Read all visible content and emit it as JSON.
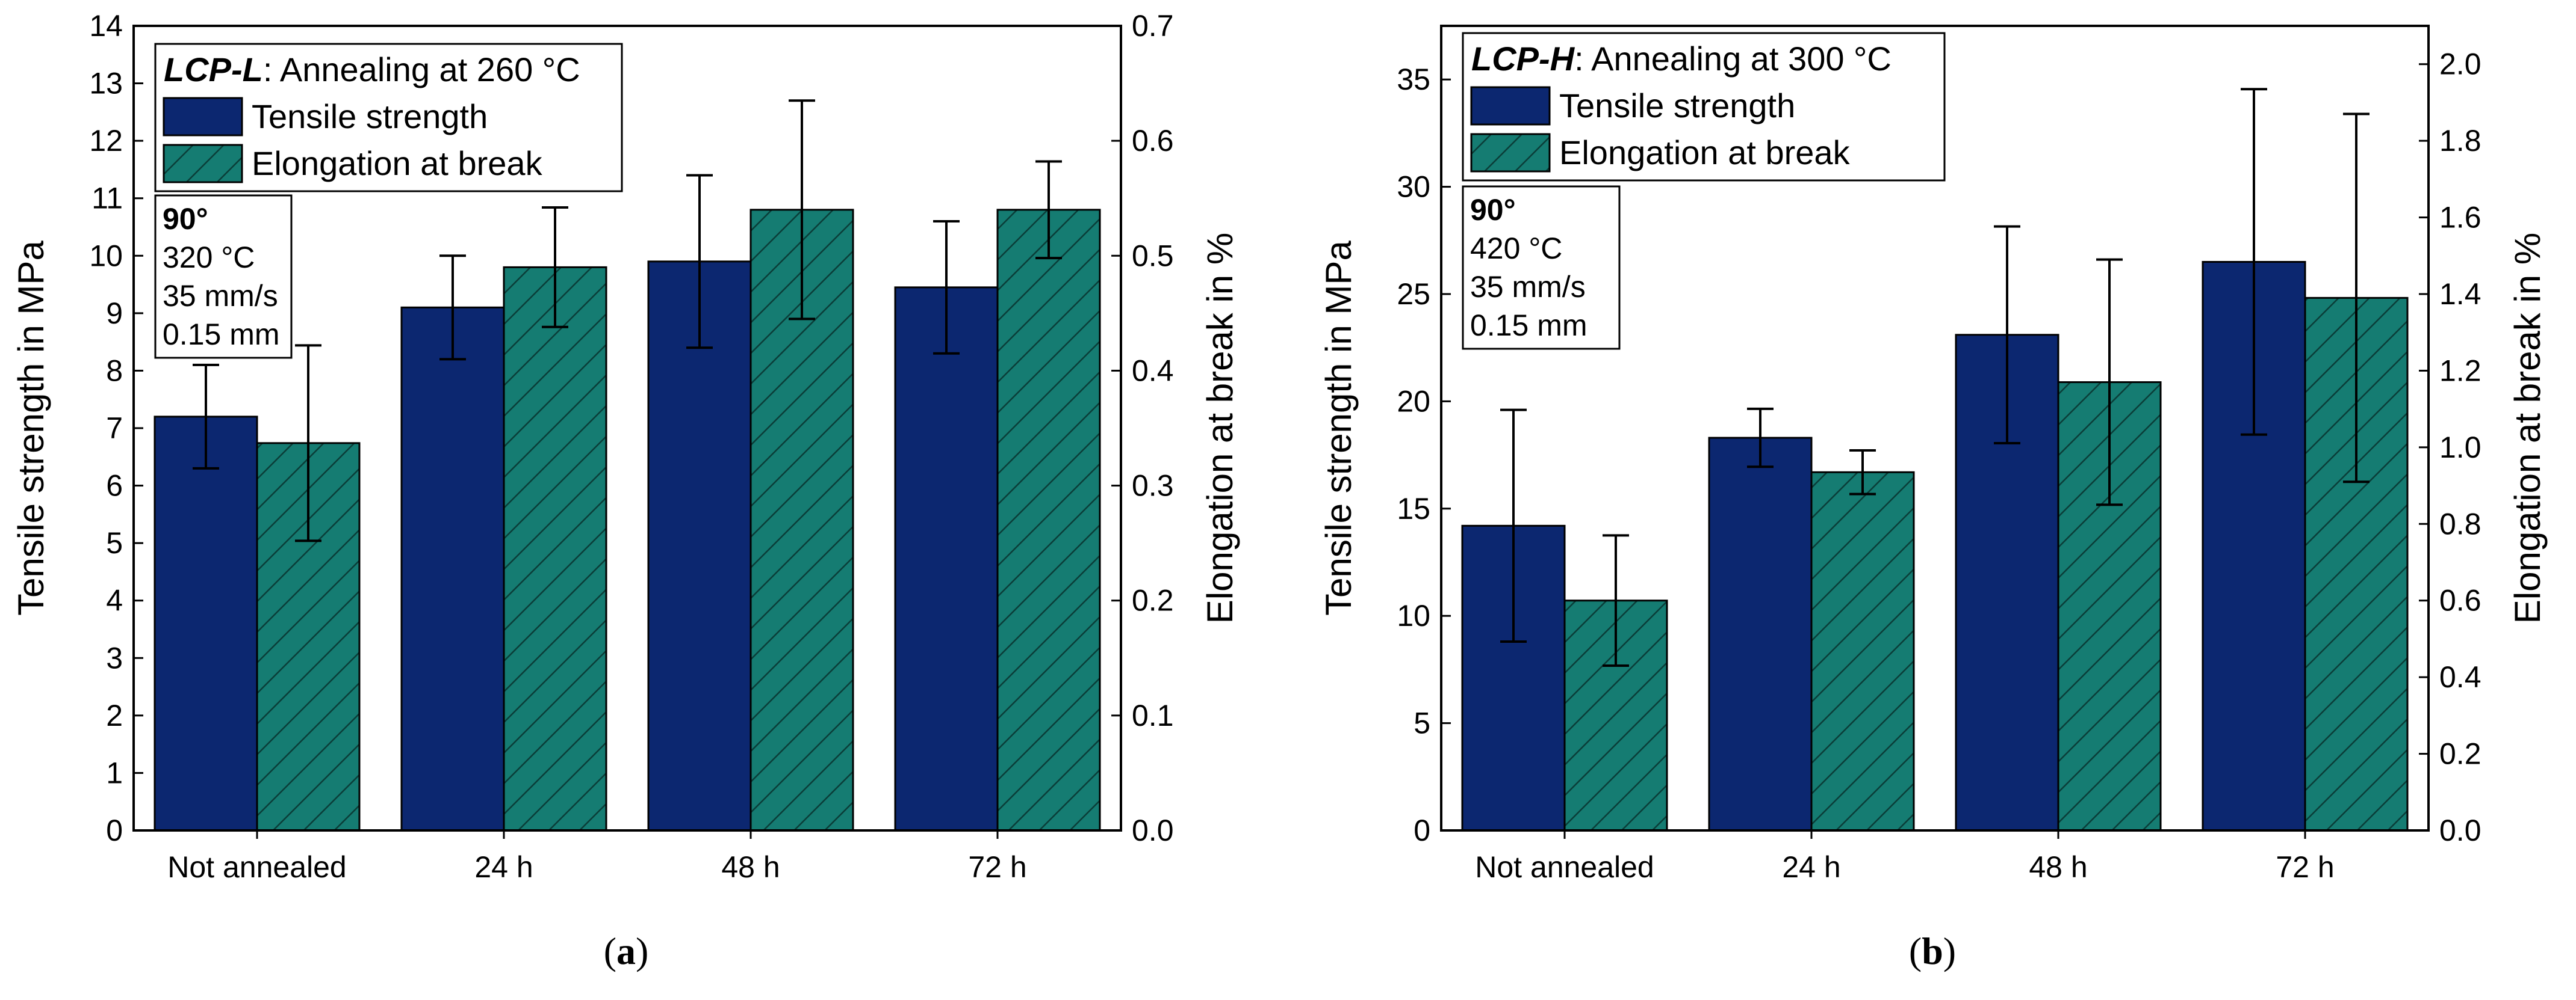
{
  "colors": {
    "tensile": "#0c2770",
    "elongation": "#157c72",
    "hatch": "#0a3d38"
  },
  "chart_data": [
    {
      "id": "a",
      "type": "bar",
      "caption": {
        "label": "a"
      },
      "categories": [
        "Not annealed",
        "24 h",
        "48 h",
        "72 h"
      ],
      "ylabel": "Tensile strength in MPa",
      "ylabel_right": "Elongation at break in %",
      "ylim": [
        0,
        14
      ],
      "ylim_right": [
        0,
        0.7
      ],
      "yticks": [
        "0",
        "1",
        "2",
        "3",
        "4",
        "5",
        "6",
        "7",
        "8",
        "9",
        "10",
        "11",
        "12",
        "13",
        "14"
      ],
      "yticks_right": [
        "0.0",
        "0.1",
        "0.2",
        "0.3",
        "0.4",
        "0.5",
        "0.6",
        "0.7"
      ],
      "legend": {
        "title_material": "LCP-L",
        "title_rest": ": Annealing at 260 °C",
        "entries": [
          "Tensile strength",
          "Elongation at break"
        ]
      },
      "info": {
        "angle": "90°",
        "lines": [
          "320 °C",
          "35 mm/s",
          "0.15 mm"
        ]
      },
      "series": [
        {
          "name": "Tensile strength",
          "axis": "left",
          "values": [
            7.2,
            9.1,
            9.9,
            9.45
          ],
          "errors": [
            0.9,
            0.9,
            1.5,
            1.15
          ]
        },
        {
          "name": "Elongation at break",
          "axis": "right",
          "values": [
            0.337,
            0.49,
            0.54,
            0.54
          ],
          "errors": [
            0.085,
            0.052,
            0.095,
            0.042
          ]
        }
      ]
    },
    {
      "id": "b",
      "type": "bar",
      "caption": {
        "label": "b"
      },
      "categories": [
        "Not annealed",
        "24 h",
        "48 h",
        "72 h"
      ],
      "ylabel": "Tensile strength in MPa",
      "ylabel_right": "Elongation at break in %",
      "ylim": [
        0,
        37.5
      ],
      "ylim_right": [
        0,
        2.1
      ],
      "yticks": [
        "0",
        "5",
        "10",
        "15",
        "20",
        "25",
        "30",
        "35"
      ],
      "yticks_right": [
        "0.0",
        "0.2",
        "0.4",
        "0.6",
        "0.8",
        "1.0",
        "1.2",
        "1.4",
        "1.6",
        "1.8",
        "2.0"
      ],
      "legend": {
        "title_material": "LCP-H",
        "title_rest": ": Annealing at 300 °C",
        "entries": [
          "Tensile strength",
          "Elongation at break"
        ]
      },
      "info": {
        "angle": "90°",
        "lines": [
          "420 °C",
          "35 mm/s",
          "0.15 mm"
        ]
      },
      "series": [
        {
          "name": "Tensile strength",
          "axis": "left",
          "values": [
            14.2,
            18.3,
            23.1,
            26.5
          ],
          "errors": [
            5.4,
            1.35,
            5.05,
            8.05
          ]
        },
        {
          "name": "Elongation at break",
          "axis": "right",
          "values": [
            0.6,
            0.935,
            1.17,
            1.39
          ],
          "errors": [
            0.17,
            0.057,
            0.32,
            0.48
          ]
        }
      ]
    }
  ]
}
